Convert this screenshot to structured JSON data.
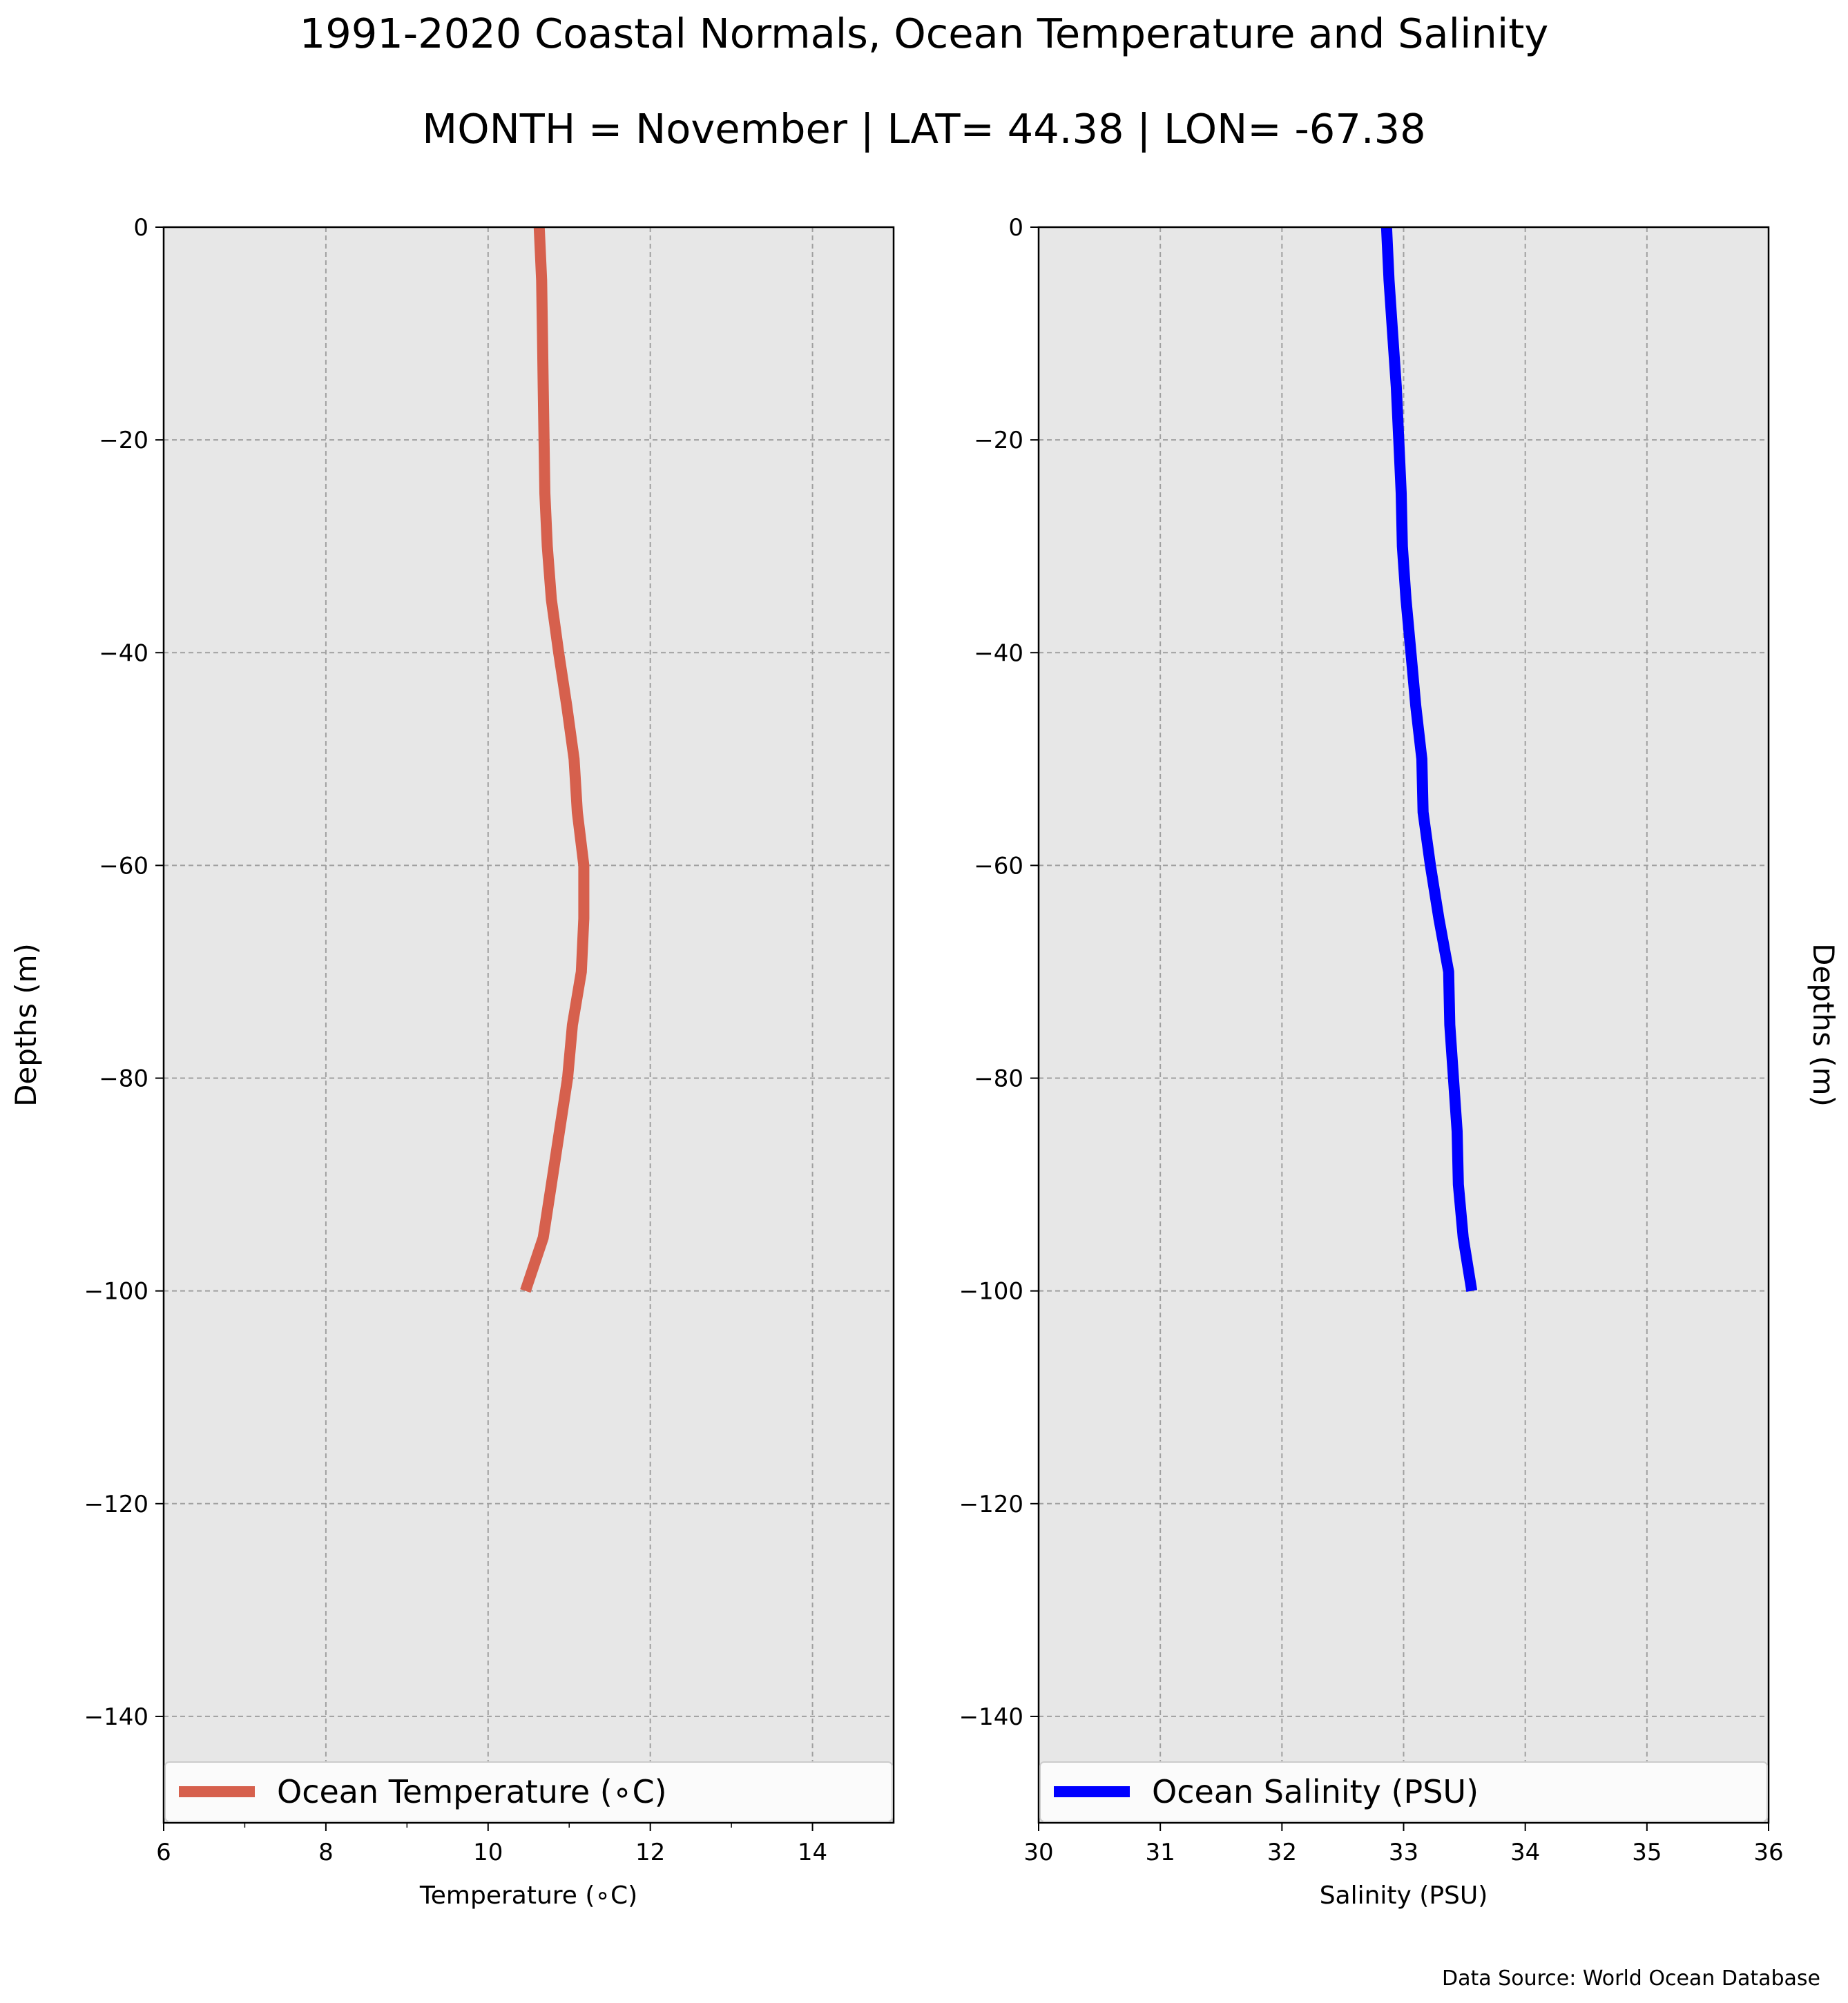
{
  "title": "1991-2020 Coastal Normals, Ocean Temperature and Salinity",
  "subtitle": "MONTH = November | LAT= 44.38 | LON= -67.38",
  "source": "Data Source: World Ocean Database",
  "chart_data": [
    {
      "type": "line",
      "xlabel": "Temperature (∘C)",
      "ylabel": "Depths (m)",
      "xlim": [
        6,
        15
      ],
      "ylim": [
        -150,
        0
      ],
      "xticks": [
        "6",
        "8",
        "10",
        "12",
        "14"
      ],
      "yticks": [
        "0",
        "−20",
        "−40",
        "−60",
        "−80",
        "−100",
        "−120",
        "−140"
      ],
      "grid": true,
      "legend_position": "lower-center",
      "series": [
        {
          "name": "Ocean Temperature (∘C)",
          "color": "#d6604d",
          "x": [
            10.63,
            10.66,
            10.67,
            10.68,
            10.69,
            10.7,
            10.73,
            10.78,
            10.87,
            10.97,
            11.06,
            11.1,
            11.18,
            11.18,
            11.15,
            11.04,
            10.98,
            10.88,
            10.78,
            10.68,
            10.46
          ],
          "y": [
            0,
            -5,
            -10,
            -15,
            -20,
            -25,
            -30,
            -35,
            -40,
            -45,
            -50,
            -55,
            -60,
            -65,
            -70,
            -75,
            -80,
            -85,
            -90,
            -95,
            -100
          ]
        }
      ]
    },
    {
      "type": "line",
      "xlabel": "Salinity (PSU)",
      "ylabel": "Depths (m)",
      "xlim": [
        30,
        36
      ],
      "ylim": [
        -150,
        0
      ],
      "xticks": [
        "30",
        "31",
        "32",
        "33",
        "34",
        "35",
        "36"
      ],
      "yticks": [
        "0",
        "−20",
        "−40",
        "−60",
        "−80",
        "−100",
        "−120",
        "−140"
      ],
      "grid": true,
      "legend_position": "lower-center",
      "series": [
        {
          "name": "Ocean Salinity (PSU)",
          "color": "#0000ff",
          "x": [
            32.86,
            32.88,
            32.91,
            32.94,
            32.96,
            32.98,
            32.99,
            33.02,
            33.06,
            33.1,
            33.15,
            33.16,
            33.22,
            33.29,
            33.37,
            33.38,
            33.41,
            33.44,
            33.45,
            33.49,
            33.56
          ],
          "y": [
            0,
            -5,
            -10,
            -15,
            -20,
            -25,
            -30,
            -35,
            -40,
            -45,
            -50,
            -55,
            -60,
            -65,
            -70,
            -75,
            -80,
            -85,
            -90,
            -95,
            -100
          ]
        }
      ]
    }
  ]
}
